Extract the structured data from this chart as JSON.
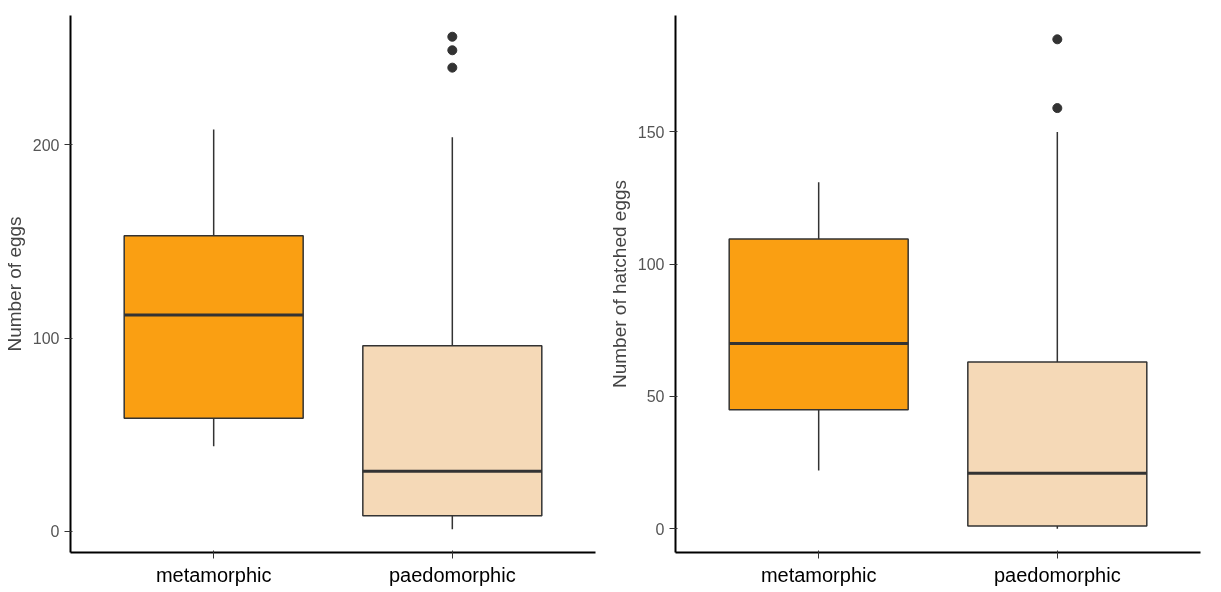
{
  "chart_data": [
    {
      "type": "box",
      "ylabel": "Number of eggs",
      "categories": [
        "metamorphic",
        "paedomorphic"
      ],
      "colors": [
        "#fa9f12",
        "#f5d9b7"
      ],
      "ylim": [
        -11,
        267
      ],
      "yticks": [
        0,
        100,
        200
      ],
      "grid": false,
      "boxes": [
        {
          "low": 44,
          "q1": 58.5,
          "median": 112,
          "q3": 153,
          "high": 208
        },
        {
          "low": 1,
          "q1": 8,
          "median": 31,
          "q3": 96,
          "high": 204,
          "outliers": [
            240,
            249,
            256
          ]
        }
      ]
    },
    {
      "type": "box",
      "ylabel": "Number of hatched eggs",
      "categories": [
        "metamorphic",
        "paedomorphic"
      ],
      "colors": [
        "#fa9f12",
        "#f5d9b7"
      ],
      "ylim": [
        -9,
        194
      ],
      "yticks": [
        0,
        50,
        100,
        150
      ],
      "grid": false,
      "boxes": [
        {
          "low": 22,
          "q1": 45,
          "median": 70,
          "q3": 109.5,
          "high": 131
        },
        {
          "low": 0,
          "q1": 1,
          "median": 21,
          "q3": 63,
          "high": 150,
          "outliers": [
            159,
            185
          ]
        }
      ]
    }
  ]
}
